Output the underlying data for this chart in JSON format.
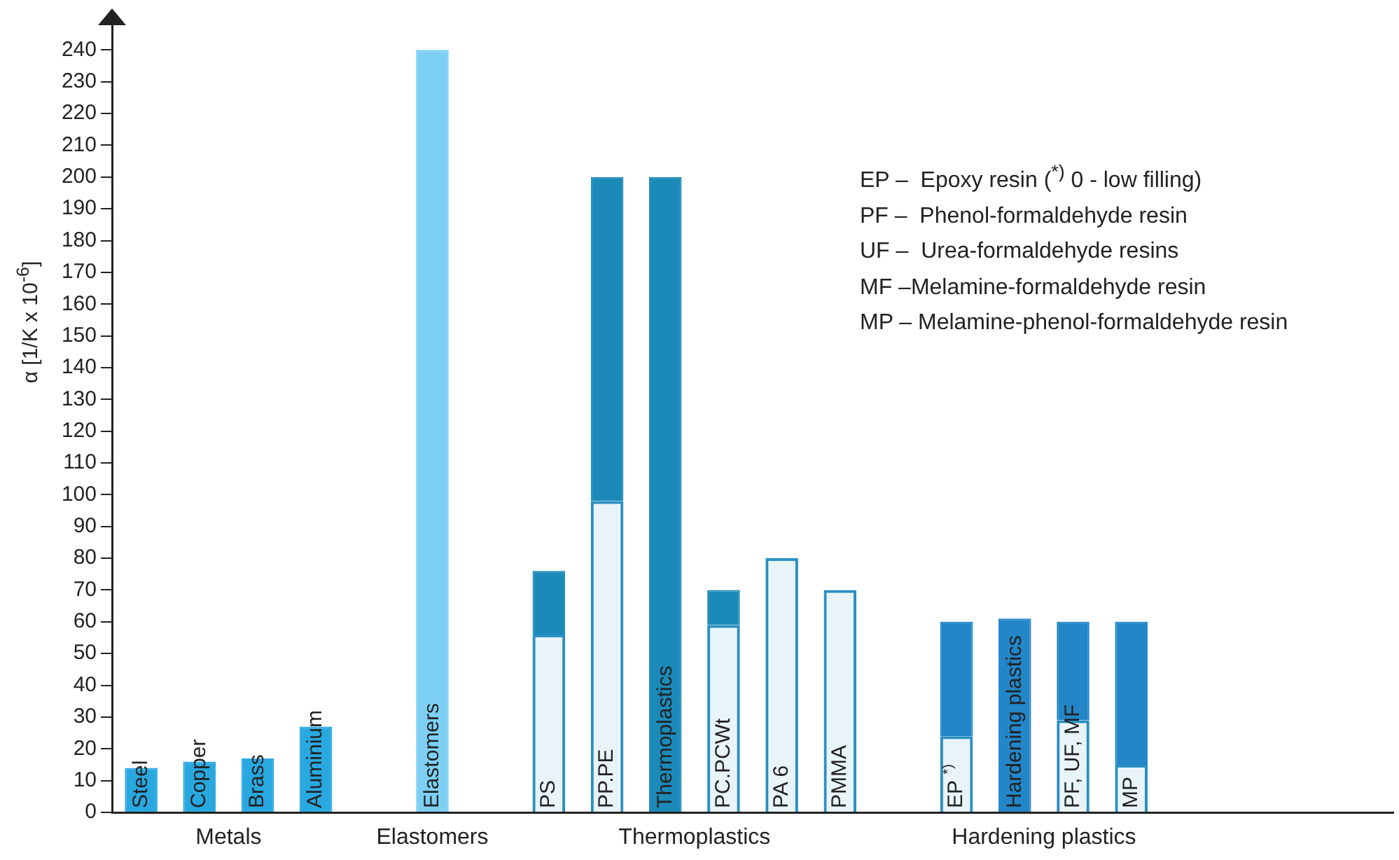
{
  "chart_data": {
    "type": "bar",
    "ylabel": "α   [1/K x 10$^{-6}$]",
    "categories": [
      "Steel",
      "Copper",
      "Brass",
      "Aluminium",
      null,
      "Elastomers",
      null,
      "PS",
      "PP.PE",
      "Thermoplastics",
      "PC.PCWt",
      "PA 6",
      "PMMA",
      null,
      "EP $^{*)}$",
      "Hardening plastics",
      "PF, UF, MF",
      "MP",
      null,
      null,
      null,
      null
    ],
    "stacked": true,
    "series": [
      {
        "colors": [
          "#29a8e0",
          "#29a8e0",
          "#29a8e0",
          "#29a8e0",
          "#29a8e0",
          "#7dd0f4",
          "#7dd0f4",
          "#1c8ab8",
          "#1c8ab8",
          "#1c8ab8",
          "#1c8ab8",
          "#1c8ab8",
          "#1c8ab8",
          "#2386c8",
          "#2386c8",
          "#2386c8",
          "#2386c8",
          "#2386c8",
          "#2386c8",
          "#2386c8",
          "#2386c8",
          "#2386c8"
        ],
        "values": [
          14,
          16,
          17,
          27,
          null,
          240,
          null,
          null,
          null,
          200,
          null,
          null,
          null,
          null,
          null,
          61,
          null,
          null,
          null,
          null,
          null,
          null
        ]
      },
      {
        "color": "#2a8fc1",
        "values": [
          null,
          null,
          null,
          null,
          null,
          null,
          null,
          56,
          98,
          null,
          59,
          80,
          70,
          null,
          24,
          null,
          29,
          15,
          null,
          null,
          null,
          null
        ]
      },
      {
        "colors": [
          "#1c8ab8",
          "#1c8ab8",
          "#1c8ab8",
          "#1c8ab8",
          "#1c8ab8",
          "#1c8ab8",
          "#1c8ab8",
          "#1c8ab8",
          "#1c8ab8",
          "#1c8ab8",
          "#1c8ab8",
          "#1c8ab8",
          "#1c8ab8",
          "#2386c8",
          "#2386c8",
          "#2386c8",
          "#2386c8",
          "#2386c8",
          "#2386c8",
          "#2386c8",
          "#2386c8",
          "#2386c8"
        ],
        "values": [
          null,
          null,
          null,
          null,
          null,
          null,
          null,
          20,
          102,
          null,
          11,
          null,
          null,
          null,
          36,
          null,
          31,
          45,
          null,
          null,
          null,
          null
        ]
      }
    ],
    "ylim": [
      0,
      250
    ],
    "yticks": [
      0,
      10,
      20,
      30,
      40,
      50,
      60,
      70,
      80,
      90,
      100,
      110,
      120,
      130,
      140,
      150,
      160,
      170,
      180,
      190,
      200,
      210,
      220,
      230,
      240
    ],
    "grid": false,
    "legend": false,
    "annotations": [
      "Metals",
      "Elastomers",
      "Thermoplastics",
      "Hardening plastics",
      "EP –  Epoxy resin ($^{*)}$ 0 - low filling)",
      "PF –  Phenol-formaldehyde resin",
      "UF –  Urea-formaldehyde resins",
      "MF –Melamine-formaldehyde resin",
      "MP – Melamine-phenol-formaldehyde resin"
    ]
  }
}
